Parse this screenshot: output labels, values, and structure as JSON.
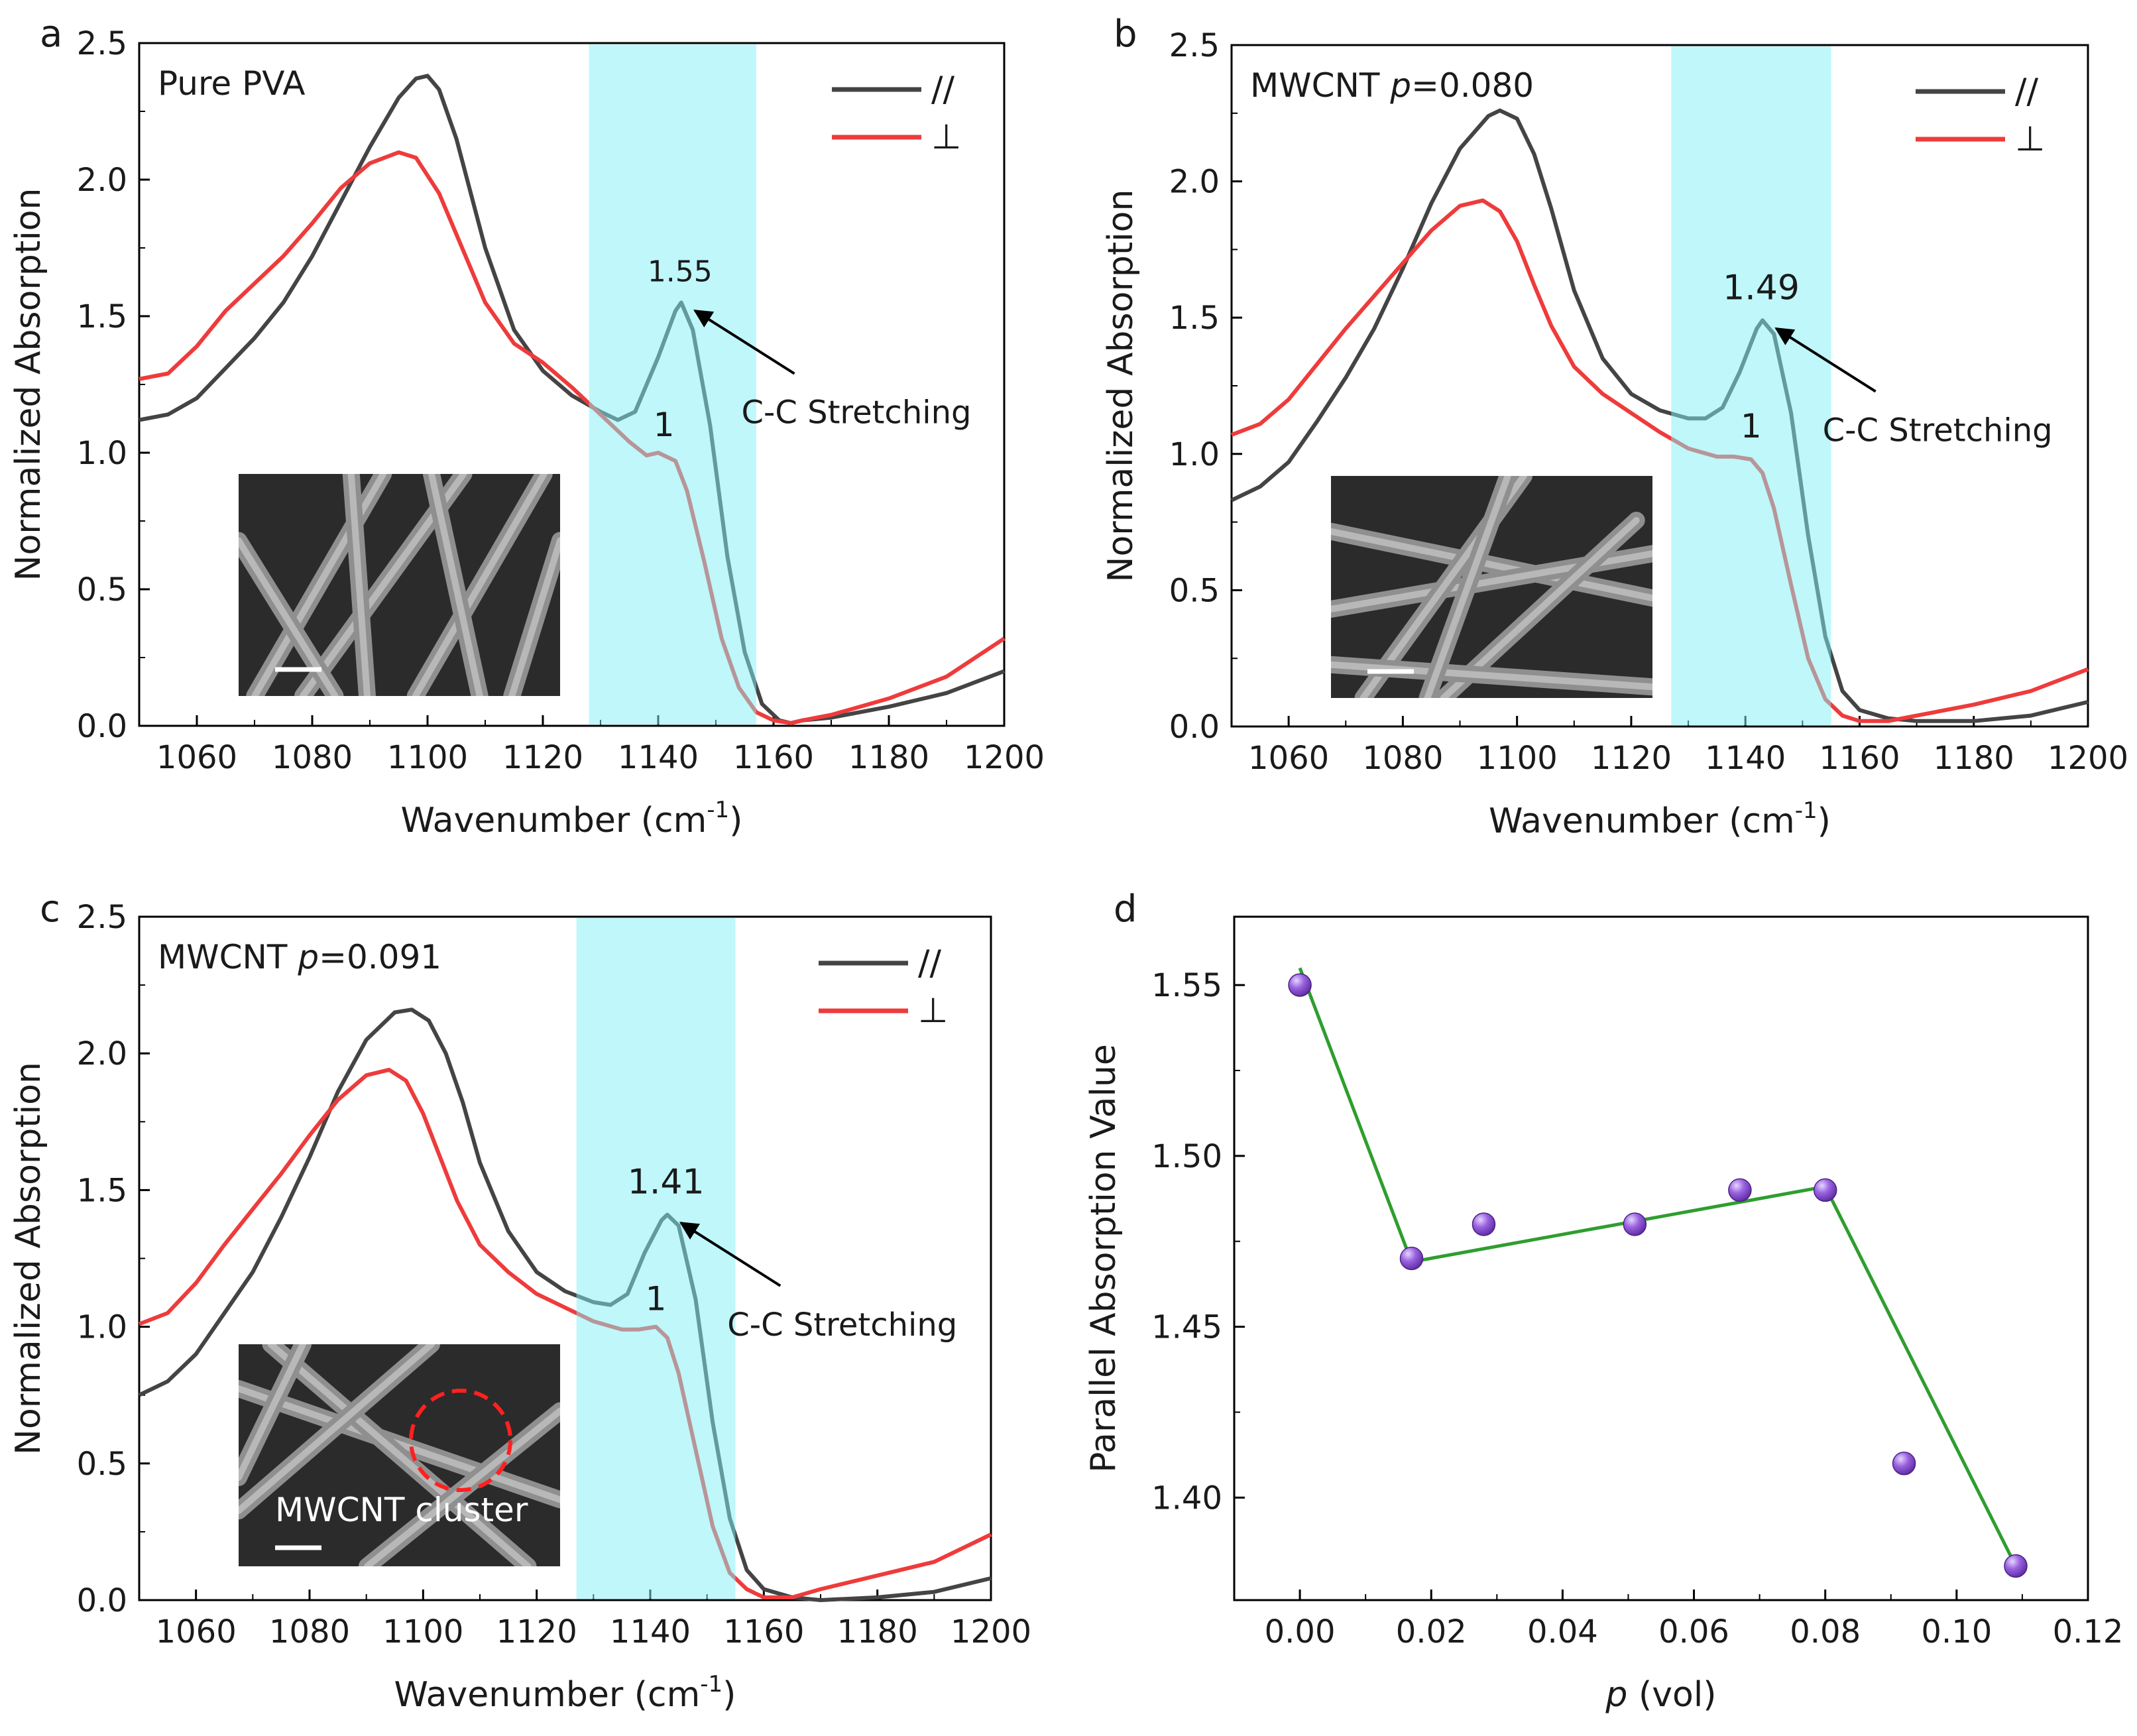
{
  "chart_data": [
    {
      "panel": "a",
      "type": "line",
      "title": "Pure PVA",
      "xlabel": "Wavenumber (cm",
      "xlabel_sup": "-1",
      "xlabel_close": ")",
      "ylabel": "Normalized Absorption",
      "xlim": [
        1050,
        1200
      ],
      "ylim": [
        0,
        2.5
      ],
      "xticks": [
        1060,
        1080,
        1100,
        1120,
        1140,
        1160,
        1180,
        1200
      ],
      "yticks": [
        "0.0",
        "0.5",
        "1.0",
        "1.5",
        "2.0",
        "2.5"
      ],
      "highlight_band": [
        1128,
        1157
      ],
      "legend_position": "top-right",
      "series": [
        {
          "name": "//",
          "color": "#444444",
          "x": [
            1050,
            1055,
            1060,
            1065,
            1070,
            1075,
            1080,
            1085,
            1090,
            1095,
            1098,
            1100,
            1102,
            1105,
            1110,
            1115,
            1120,
            1125,
            1130,
            1133,
            1136,
            1140,
            1143,
            1144,
            1146,
            1149,
            1152,
            1155,
            1158,
            1161,
            1163,
            1165,
            1170,
            1180,
            1190,
            1200
          ],
          "y": [
            1.12,
            1.14,
            1.2,
            1.31,
            1.42,
            1.55,
            1.72,
            1.92,
            2.12,
            2.3,
            2.37,
            2.38,
            2.33,
            2.15,
            1.75,
            1.45,
            1.3,
            1.21,
            1.15,
            1.12,
            1.15,
            1.35,
            1.52,
            1.55,
            1.45,
            1.1,
            0.62,
            0.27,
            0.08,
            0.02,
            0.01,
            0.02,
            0.03,
            0.07,
            0.12,
            0.2
          ]
        },
        {
          "name": "⊥",
          "color": "#ee3b3b",
          "x": [
            1050,
            1055,
            1060,
            1065,
            1070,
            1075,
            1080,
            1085,
            1090,
            1095,
            1098,
            1102,
            1105,
            1110,
            1115,
            1120,
            1125,
            1130,
            1135,
            1138,
            1140,
            1143,
            1145,
            1148,
            1151,
            1154,
            1157,
            1160,
            1163,
            1165,
            1170,
            1180,
            1190,
            1200
          ],
          "y": [
            1.27,
            1.29,
            1.39,
            1.52,
            1.62,
            1.72,
            1.84,
            1.97,
            2.06,
            2.1,
            2.08,
            1.95,
            1.8,
            1.55,
            1.4,
            1.33,
            1.24,
            1.14,
            1.04,
            0.99,
            1.0,
            0.97,
            0.86,
            0.6,
            0.32,
            0.14,
            0.05,
            0.02,
            0.01,
            0.02,
            0.04,
            0.1,
            0.18,
            0.32
          ]
        }
      ],
      "annotations": [
        {
          "text": "1.55",
          "target": [
            1144,
            1.55
          ]
        },
        {
          "text": "C-C Stretching",
          "arrow_to": [
            1145,
            1.53
          ]
        },
        {
          "text": "1",
          "target": [
            1141,
            1.0
          ]
        }
      ],
      "inset": {
        "label": ""
      }
    },
    {
      "panel": "b",
      "type": "line",
      "title": "MWCNT ",
      "title_var": "p",
      "title_rest": "=0.080",
      "xlabel": "Wavenumber (cm",
      "xlabel_sup": "-1",
      "xlabel_close": ")",
      "ylabel": "Normalized Absorption",
      "xlim": [
        1050,
        1200
      ],
      "ylim": [
        0,
        2.5
      ],
      "xticks": [
        1060,
        1080,
        1100,
        1120,
        1140,
        1160,
        1180,
        1200
      ],
      "yticks": [
        "0.0",
        "0.5",
        "1.0",
        "1.5",
        "2.0",
        "2.5"
      ],
      "highlight_band": [
        1127,
        1155
      ],
      "legend_position": "top-right",
      "series": [
        {
          "name": "//",
          "color": "#444444",
          "x": [
            1050,
            1055,
            1060,
            1065,
            1070,
            1075,
            1080,
            1085,
            1090,
            1095,
            1097,
            1100,
            1103,
            1106,
            1110,
            1115,
            1120,
            1125,
            1130,
            1133,
            1136,
            1139,
            1142,
            1143,
            1145,
            1148,
            1151,
            1154,
            1157,
            1160,
            1165,
            1170,
            1180,
            1190,
            1200
          ],
          "y": [
            0.83,
            0.88,
            0.97,
            1.12,
            1.28,
            1.46,
            1.68,
            1.92,
            2.12,
            2.24,
            2.26,
            2.23,
            2.1,
            1.9,
            1.6,
            1.35,
            1.22,
            1.16,
            1.13,
            1.13,
            1.17,
            1.3,
            1.46,
            1.49,
            1.44,
            1.15,
            0.7,
            0.33,
            0.13,
            0.06,
            0.03,
            0.02,
            0.02,
            0.04,
            0.09
          ]
        },
        {
          "name": "⊥",
          "color": "#ee3b3b",
          "x": [
            1050,
            1055,
            1060,
            1065,
            1070,
            1075,
            1080,
            1085,
            1090,
            1094,
            1097,
            1100,
            1103,
            1106,
            1110,
            1115,
            1120,
            1125,
            1130,
            1135,
            1138,
            1141,
            1143,
            1145,
            1148,
            1151,
            1154,
            1157,
            1160,
            1165,
            1170,
            1180,
            1190,
            1200
          ],
          "y": [
            1.07,
            1.11,
            1.2,
            1.33,
            1.46,
            1.58,
            1.7,
            1.82,
            1.91,
            1.93,
            1.89,
            1.78,
            1.62,
            1.47,
            1.32,
            1.22,
            1.15,
            1.08,
            1.02,
            0.99,
            0.99,
            0.98,
            0.93,
            0.8,
            0.52,
            0.25,
            0.1,
            0.04,
            0.02,
            0.02,
            0.04,
            0.08,
            0.13,
            0.21
          ]
        }
      ],
      "annotations": [
        {
          "text": "1.49",
          "target": [
            1143,
            1.49
          ]
        },
        {
          "text": "C-C Stretching",
          "arrow_to": [
            1144,
            1.47
          ]
        },
        {
          "text": "1",
          "target": [
            1141,
            1.0
          ]
        }
      ],
      "inset": {
        "label": ""
      }
    },
    {
      "panel": "c",
      "type": "line",
      "title": "MWCNT ",
      "title_var": "p",
      "title_rest": "=0.091",
      "xlabel": "Wavenumber (cm",
      "xlabel_sup": "-1",
      "xlabel_close": ")",
      "ylabel": "Normalized Absorption",
      "xlim": [
        1050,
        1200
      ],
      "ylim": [
        0,
        2.5
      ],
      "xticks": [
        1060,
        1080,
        1100,
        1120,
        1140,
        1160,
        1180,
        1200
      ],
      "yticks": [
        "0.0",
        "0.5",
        "1.0",
        "1.5",
        "2.0",
        "2.5"
      ],
      "highlight_band": [
        1127,
        1155
      ],
      "legend_position": "top-right",
      "series": [
        {
          "name": "//",
          "color": "#444444",
          "x": [
            1050,
            1055,
            1060,
            1065,
            1070,
            1075,
            1080,
            1085,
            1090,
            1095,
            1098,
            1101,
            1104,
            1107,
            1110,
            1115,
            1120,
            1125,
            1130,
            1133,
            1136,
            1139,
            1142,
            1143,
            1145,
            1148,
            1151,
            1154,
            1157,
            1160,
            1165,
            1170,
            1180,
            1190,
            1200
          ],
          "y": [
            0.75,
            0.8,
            0.9,
            1.05,
            1.2,
            1.4,
            1.62,
            1.86,
            2.05,
            2.15,
            2.16,
            2.12,
            2.0,
            1.82,
            1.6,
            1.35,
            1.2,
            1.13,
            1.09,
            1.08,
            1.12,
            1.27,
            1.39,
            1.41,
            1.37,
            1.1,
            0.65,
            0.3,
            0.11,
            0.04,
            0.01,
            0.0,
            0.01,
            0.03,
            0.08
          ]
        },
        {
          "name": "⊥",
          "color": "#ee3b3b",
          "x": [
            1050,
            1055,
            1060,
            1065,
            1070,
            1075,
            1080,
            1085,
            1090,
            1094,
            1097,
            1100,
            1103,
            1106,
            1110,
            1115,
            1120,
            1125,
            1130,
            1135,
            1138,
            1141,
            1143,
            1145,
            1148,
            1151,
            1154,
            1157,
            1160,
            1165,
            1170,
            1180,
            1190,
            1200
          ],
          "y": [
            1.01,
            1.05,
            1.16,
            1.3,
            1.43,
            1.56,
            1.7,
            1.83,
            1.92,
            1.94,
            1.9,
            1.78,
            1.62,
            1.46,
            1.3,
            1.2,
            1.12,
            1.07,
            1.02,
            0.99,
            0.99,
            1.0,
            0.96,
            0.83,
            0.55,
            0.27,
            0.1,
            0.04,
            0.01,
            0.01,
            0.04,
            0.09,
            0.14,
            0.24
          ]
        }
      ],
      "annotations": [
        {
          "text": "1.41",
          "target": [
            1143,
            1.41
          ]
        },
        {
          "text": "C-C Stretching",
          "arrow_to": [
            1144,
            1.39
          ]
        },
        {
          "text": "1",
          "target": [
            1141,
            1.0
          ]
        }
      ],
      "inset": {
        "label": "MWCNT cluster"
      }
    },
    {
      "panel": "d",
      "type": "scatter",
      "title": "",
      "xlabel_var": "p",
      "xlabel": " (vol)",
      "ylabel": "Parallel Absorption Value",
      "xlim": [
        -0.01,
        0.12
      ],
      "ylim": [
        1.37,
        1.57
      ],
      "xticks": [
        "0.00",
        "0.02",
        "0.04",
        "0.06",
        "0.08",
        "0.10",
        "0.12"
      ],
      "yticks": [
        "1.40",
        "1.45",
        "1.50",
        "1.55"
      ],
      "point_color": "#8a4fd1",
      "line_color": "#2e9e2e",
      "points": {
        "x": [
          0.0,
          0.017,
          0.028,
          0.051,
          0.067,
          0.08,
          0.092,
          0.109
        ],
        "y": [
          1.55,
          1.47,
          1.48,
          1.48,
          1.49,
          1.49,
          1.41,
          1.38
        ]
      },
      "fit_line": {
        "x": [
          0.0,
          0.017,
          0.08,
          0.109
        ],
        "y": [
          1.555,
          1.469,
          1.491,
          1.38
        ]
      }
    }
  ]
}
